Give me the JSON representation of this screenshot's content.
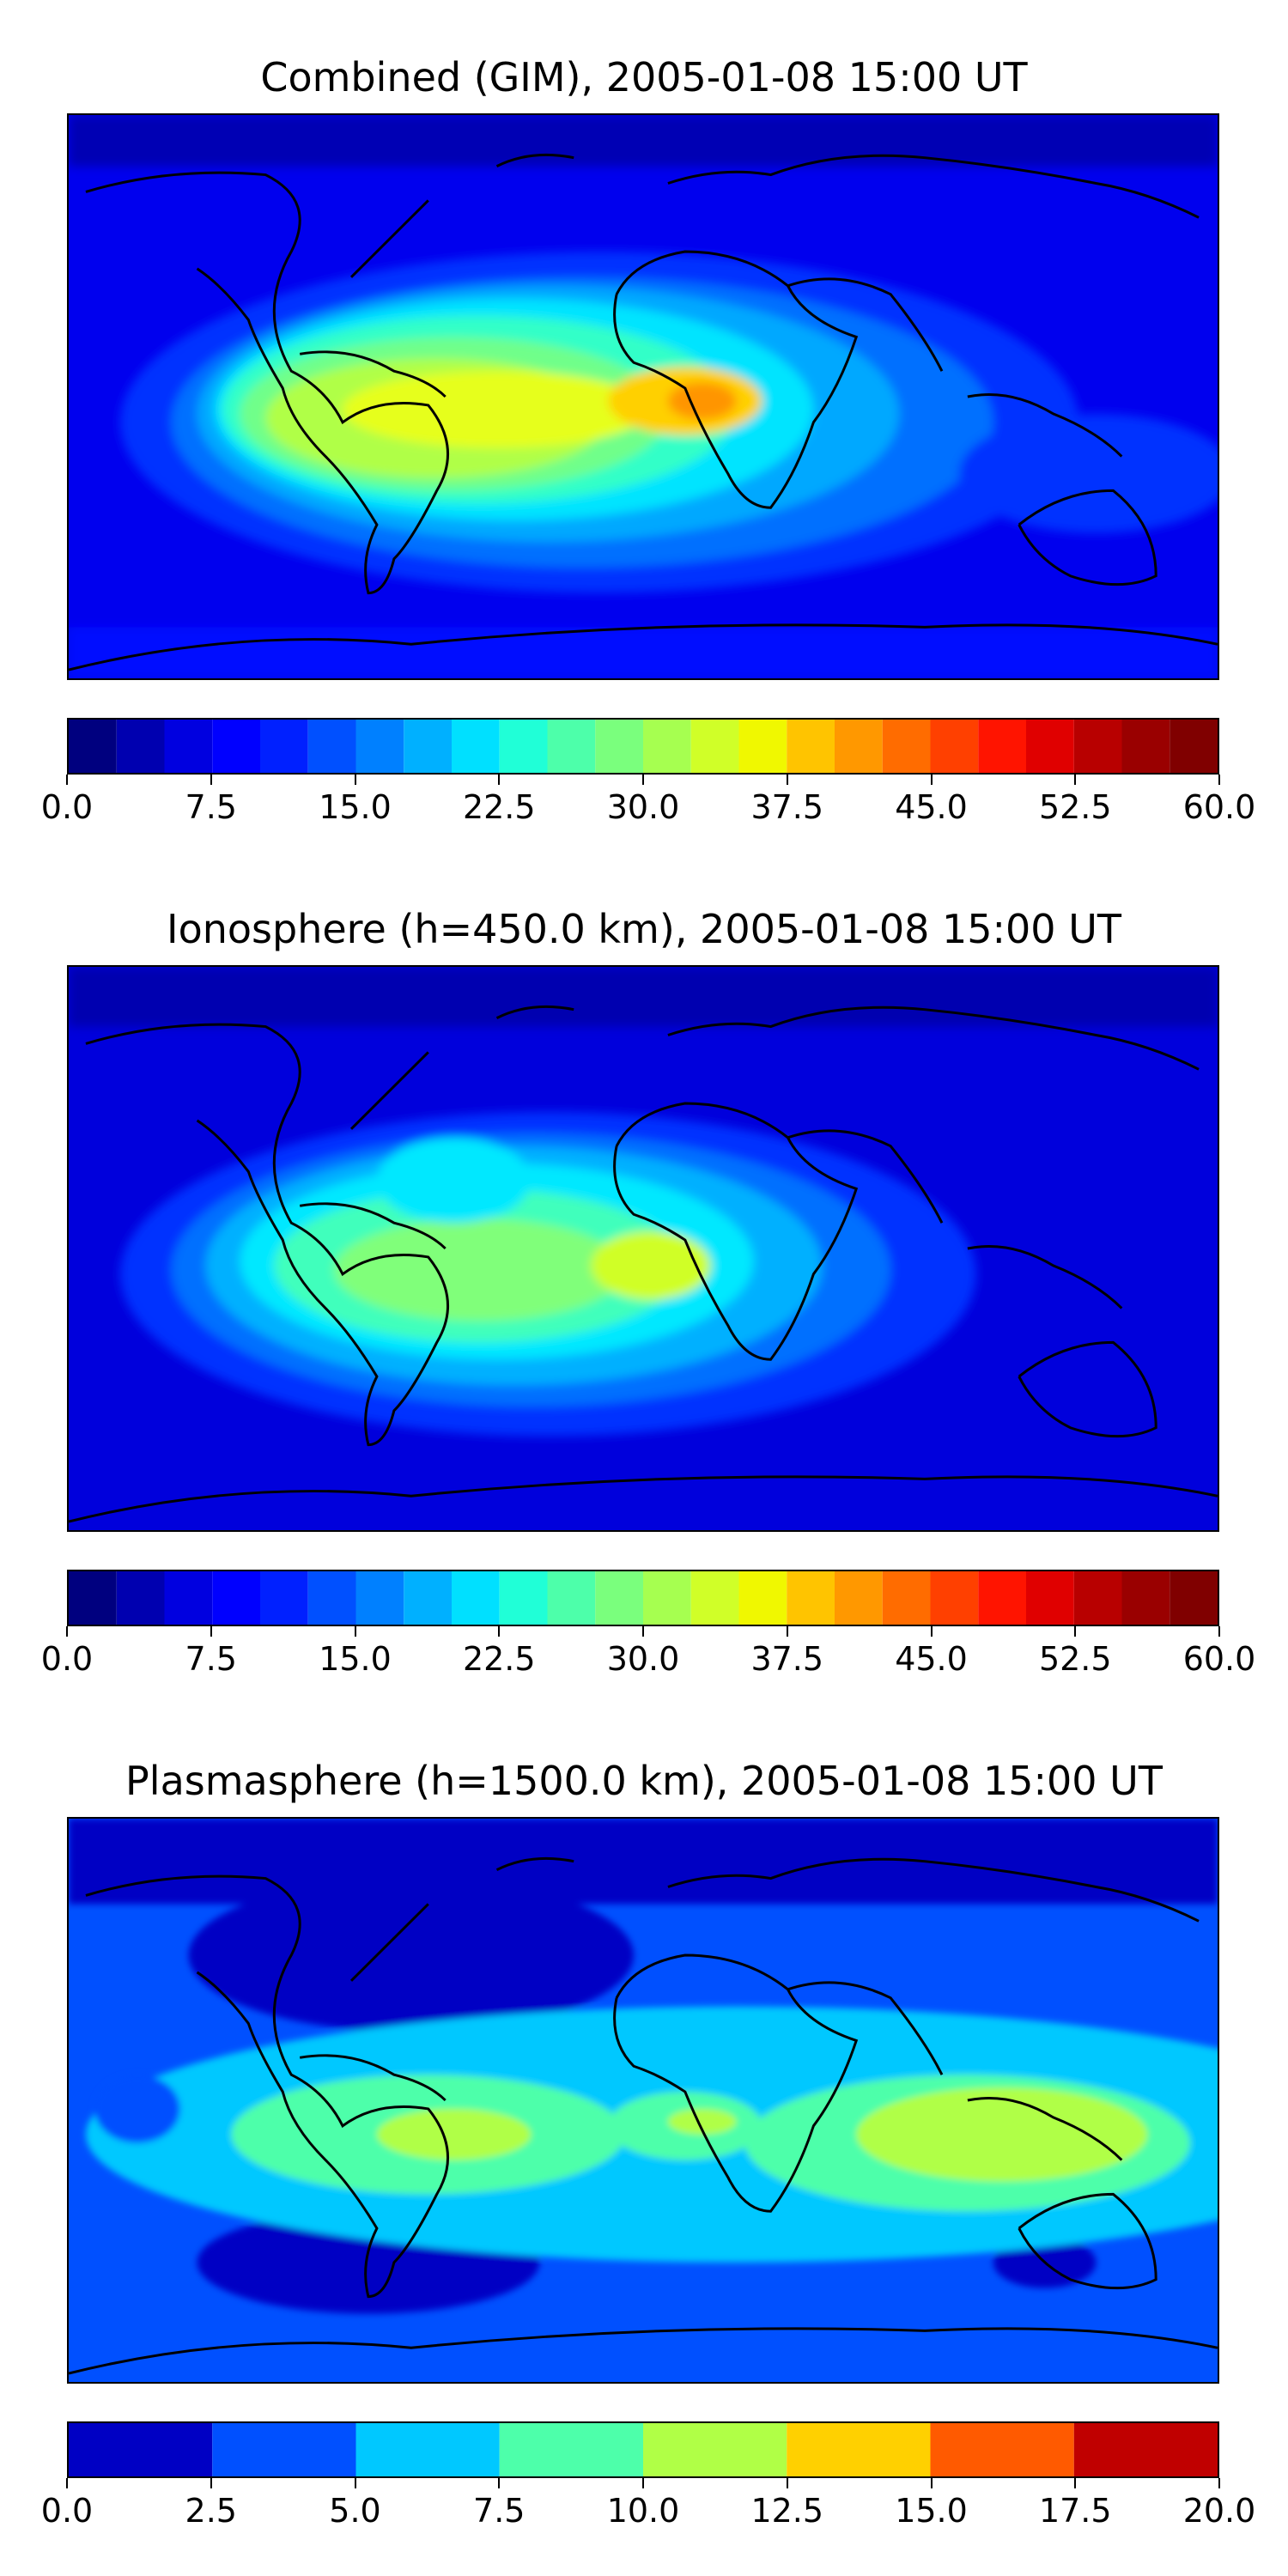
{
  "panels": [
    {
      "title": "Combined (GIM), 2005-01-08 15:00 UT",
      "levels": 24,
      "vmin": 0,
      "vmax": 60,
      "colorbar_ticks": [
        "0.0",
        "7.5",
        "15.0",
        "22.5",
        "30.0",
        "37.5",
        "45.0",
        "52.5",
        "60.0"
      ],
      "colors": [
        "#00007f",
        "#0000c4",
        "#0000ff",
        "#0010ff",
        "#0050ff",
        "#0090ff",
        "#00c8ff",
        "#20ffd7",
        "#4dffaa",
        "#80ff7a",
        "#b0ff46",
        "#e6ff1c",
        "#ffd000",
        "#ff9500",
        "#ff5a00",
        "#ff2000",
        "#d90000",
        "#a00000",
        "#800000"
      ]
    },
    {
      "title": "Ionosphere  (h=450.0 km), 2005-01-08 15:00 UT",
      "levels": 24,
      "vmin": 0,
      "vmax": 60,
      "colorbar_ticks": [
        "0.0",
        "7.5",
        "15.0",
        "22.5",
        "30.0",
        "37.5",
        "45.0",
        "52.5",
        "60.0"
      ]
    },
    {
      "title": "Plasmasphere (h=1500.0 km), 2005-01-08 15:00 UT",
      "levels": 8,
      "vmin": 0,
      "vmax": 20,
      "colorbar_ticks": [
        "0.0",
        "2.5",
        "5.0",
        "7.5",
        "10.0",
        "12.5",
        "15.0",
        "17.5",
        "20.0"
      ],
      "colors": [
        "#0000c4",
        "#0050ff",
        "#00c8ff",
        "#4dffaa",
        "#b0ff46",
        "#ffd000",
        "#ff5a00",
        "#c00000"
      ]
    }
  ]
}
